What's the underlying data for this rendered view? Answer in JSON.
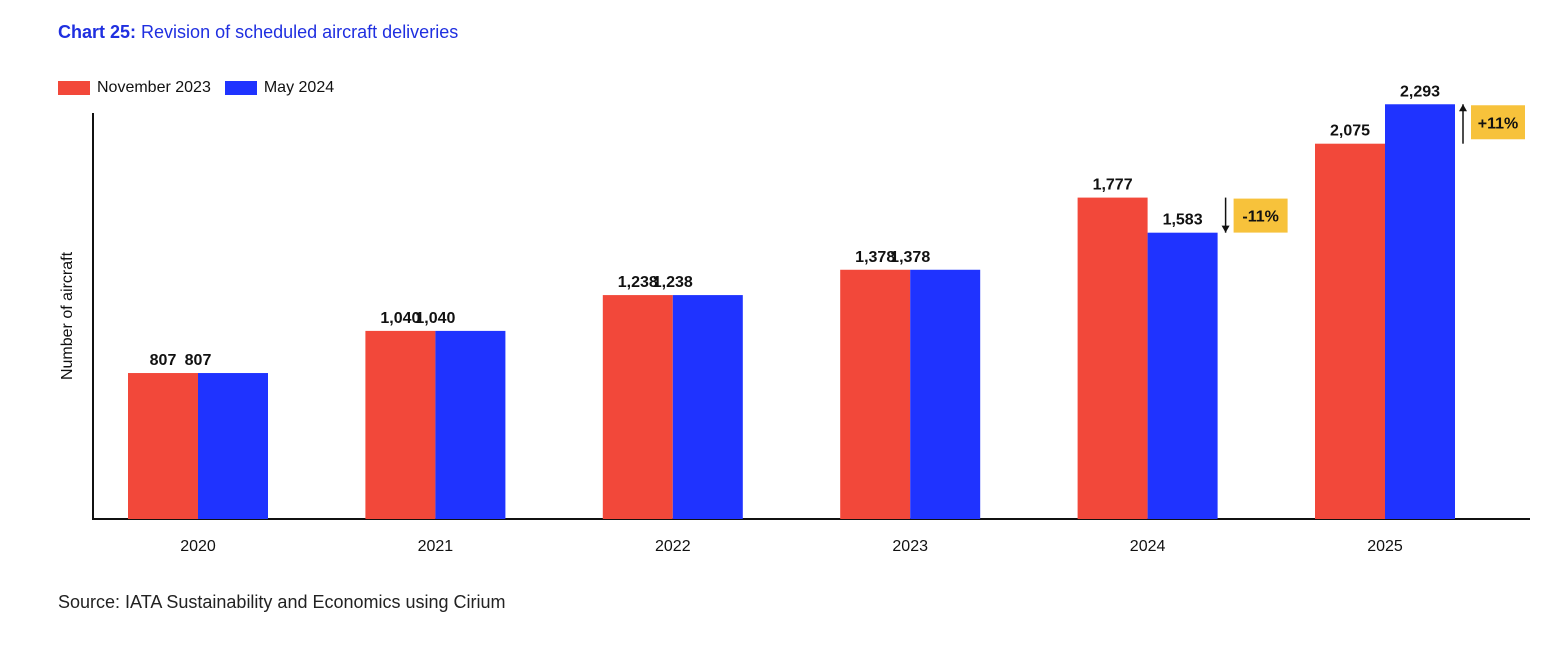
{
  "title": {
    "prefix": "Chart 25:",
    "text": "Revision of scheduled aircraft deliveries"
  },
  "source": "Source: IATA Sustainability and Economics using Cirium",
  "colors": {
    "november_2023": "#f2483a",
    "may_2024": "#1f33ff",
    "badge": "#f7c23b"
  },
  "chart_data": {
    "type": "bar",
    "title": "Revision of scheduled aircraft deliveries",
    "ylabel": "Number of aircraft",
    "xlabel": "",
    "categories": [
      "2020",
      "2021",
      "2022",
      "2023",
      "2024",
      "2025"
    ],
    "series": [
      {
        "name": "November 2023",
        "values": [
          807,
          1040,
          1238,
          1378,
          1777,
          2075
        ],
        "labels": [
          "807",
          "1,040",
          "1,238",
          "1,378",
          "1,777",
          "2,075"
        ]
      },
      {
        "name": "May 2024",
        "values": [
          807,
          1040,
          1238,
          1378,
          1583,
          2293
        ],
        "labels": [
          "",
          "",
          "",
          "",
          "1,583",
          "2,293"
        ]
      }
    ],
    "group_labels": [
      "807",
      "1,040",
      "1,238",
      "1,378",
      "",
      ""
    ],
    "ylim": [
      0,
      2300
    ],
    "grid": false,
    "legend_position": "top-left",
    "annotations": [
      {
        "category": "2024",
        "text": "-11%",
        "direction": "down"
      },
      {
        "category": "2025",
        "text": "+11%",
        "direction": "up"
      }
    ]
  }
}
